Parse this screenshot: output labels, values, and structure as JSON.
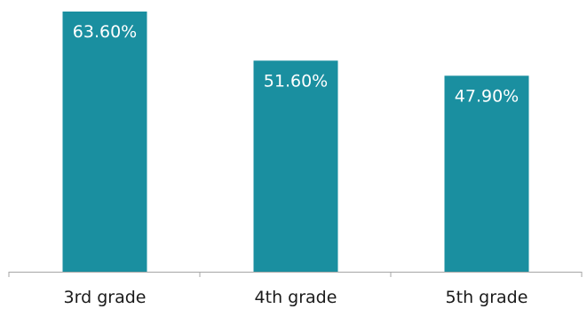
{
  "chart_data": {
    "type": "bar",
    "categories": [
      "3rd grade",
      "4th grade",
      "5th grade"
    ],
    "values": [
      63.6,
      51.6,
      47.9
    ],
    "value_labels": [
      "63.60%",
      "51.60%",
      "47.90%"
    ],
    "ylim": [
      0,
      63.6
    ],
    "grid": false,
    "legend": "none",
    "colors": {
      "bar": "#1a8fa0",
      "axis": "#a6a6a6",
      "label_inside": "#ffffff",
      "category_text": "#1a1a1a"
    }
  }
}
